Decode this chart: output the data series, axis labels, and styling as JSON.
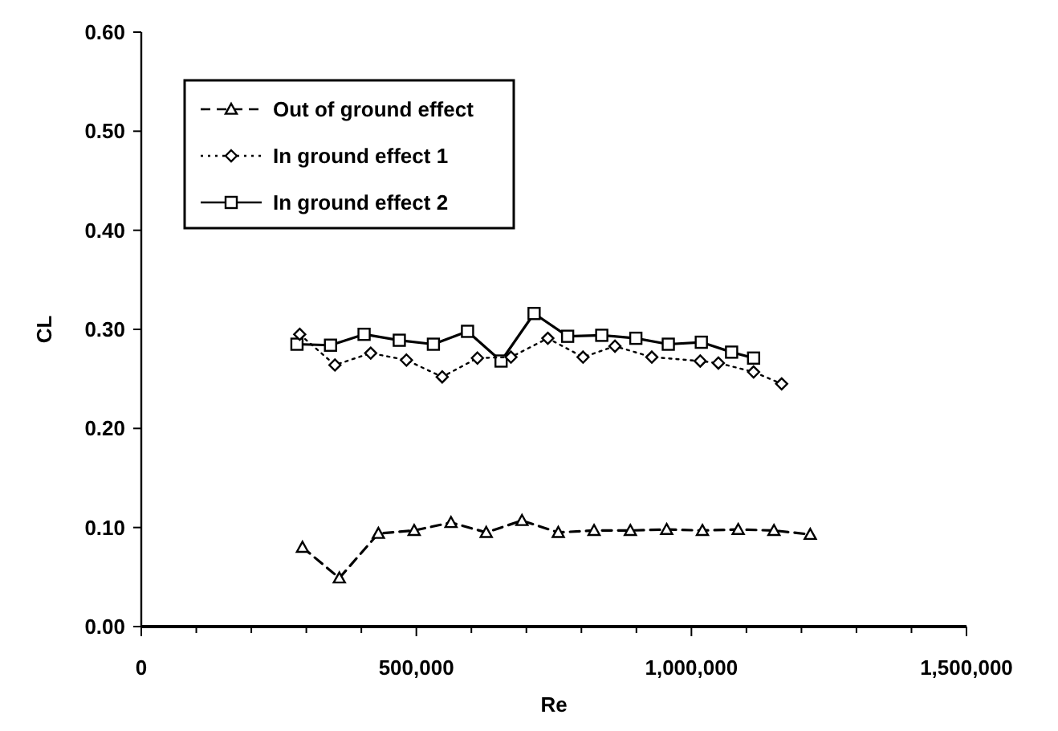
{
  "chart_data": {
    "type": "line",
    "xlabel": "Re",
    "ylabel": "CL",
    "xlim": [
      0,
      1500000
    ],
    "ylim": [
      0,
      0.6
    ],
    "xticks": [
      {
        "value": 0,
        "label": "0"
      },
      {
        "value": 100000,
        "label": null
      },
      {
        "value": 200000,
        "label": null
      },
      {
        "value": 300000,
        "label": null
      },
      {
        "value": 400000,
        "label": null
      },
      {
        "value": 500000,
        "label": "500,000"
      },
      {
        "value": 600000,
        "label": null
      },
      {
        "value": 700000,
        "label": null
      },
      {
        "value": 800000,
        "label": null
      },
      {
        "value": 900000,
        "label": null
      },
      {
        "value": 1000000,
        "label": "1,000,000"
      },
      {
        "value": 1100000,
        "label": null
      },
      {
        "value": 1200000,
        "label": null
      },
      {
        "value": 1300000,
        "label": null
      },
      {
        "value": 1400000,
        "label": null
      },
      {
        "value": 1500000,
        "label": "1,500,000"
      }
    ],
    "yticks": [
      {
        "value": 0,
        "label": "0.00"
      },
      {
        "value": 0.1,
        "label": "0.10"
      },
      {
        "value": 0.2,
        "label": "0.20"
      },
      {
        "value": 0.3,
        "label": "0.30"
      },
      {
        "value": 0.4,
        "label": "0.40"
      },
      {
        "value": 0.5,
        "label": "0.50"
      },
      {
        "value": 0.6,
        "label": "0.60"
      }
    ],
    "legend": "top left",
    "grid": false,
    "series": [
      {
        "name": "Out of ground effect",
        "color": "#000000",
        "marker": "triangle",
        "line_style": "dashed",
        "x": [
          293000,
          360000,
          431000,
          496000,
          563000,
          627000,
          692000,
          758000,
          823000,
          889000,
          955000,
          1020000,
          1085000,
          1150000,
          1216000
        ],
        "values": [
          0.08,
          0.049,
          0.094,
          0.097,
          0.105,
          0.095,
          0.107,
          0.095,
          0.097,
          0.097,
          0.098,
          0.097,
          0.098,
          0.097,
          0.093
        ]
      },
      {
        "name": "In ground effect 1",
        "color": "#000000",
        "marker": "diamond",
        "line_style": "dotted",
        "x": [
          288000,
          352000,
          417000,
          482000,
          547000,
          611000,
          672000,
          739000,
          803000,
          861000,
          928000,
          1016000,
          1049000,
          1113000,
          1164000
        ],
        "values": [
          0.295,
          0.264,
          0.276,
          0.269,
          0.252,
          0.271,
          0.272,
          0.291,
          0.272,
          0.283,
          0.272,
          0.268,
          0.266,
          0.257,
          0.245
        ]
      },
      {
        "name": "In ground effect 2",
        "color": "#000000",
        "marker": "square",
        "line_style": "solid",
        "x": [
          283000,
          344000,
          405000,
          469000,
          531000,
          593000,
          654000,
          714000,
          775000,
          837000,
          899000,
          958000,
          1018000,
          1073000,
          1113000
        ],
        "values": [
          0.285,
          0.284,
          0.295,
          0.289,
          0.285,
          0.298,
          0.268,
          0.316,
          0.293,
          0.294,
          0.291,
          0.285,
          0.287,
          0.277,
          0.271
        ]
      }
    ]
  }
}
